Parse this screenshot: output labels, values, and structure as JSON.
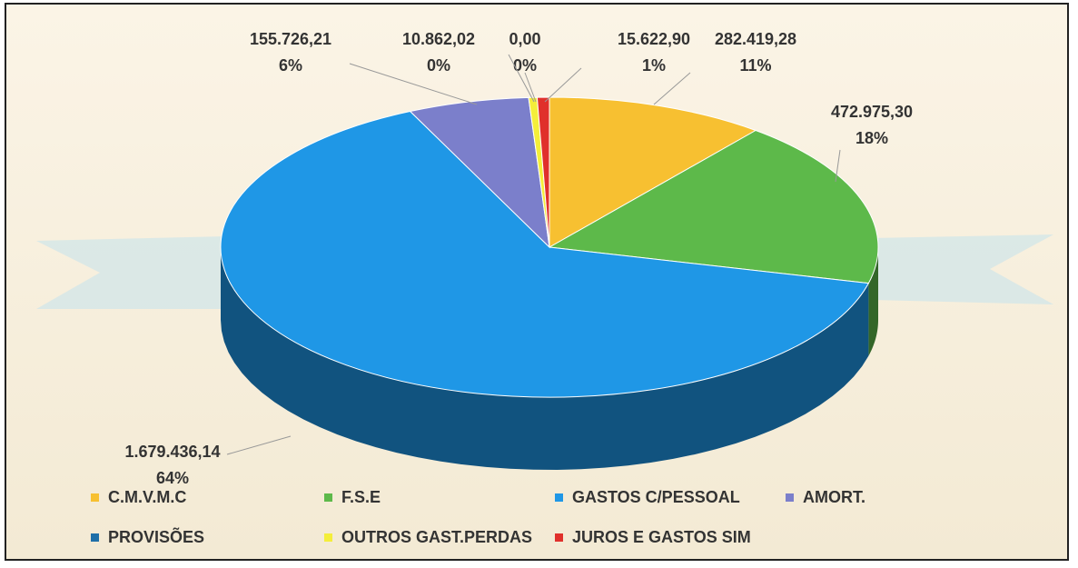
{
  "chart_data": {
    "type": "pie3d",
    "categories": [
      "C.M.V.M.C",
      "F.S.E",
      "GASTOS C/PESSOAL",
      "AMORT.",
      "PROVISÕES",
      "OUTROS GAST.PERDAS",
      "JUROS E GASTOS SIM"
    ],
    "values": [
      282419.28,
      472975.3,
      1679436.14,
      155726.21,
      0,
      10862.02,
      15622.9
    ],
    "value_labels": [
      "282.419,28",
      "472.975,30",
      "1.679.436,14",
      "155.726,21",
      "0,00",
      "10.862,02",
      "15.622,90"
    ],
    "percent_labels": [
      "11%",
      "18%",
      "64%",
      "6%",
      "0%",
      "0%",
      "1%"
    ],
    "colors": [
      "#f7c031",
      "#5db94a",
      "#1f97e6",
      "#7b7fcb",
      "#1f6fa8",
      "#f4ee3a",
      "#e0302b"
    ]
  }
}
